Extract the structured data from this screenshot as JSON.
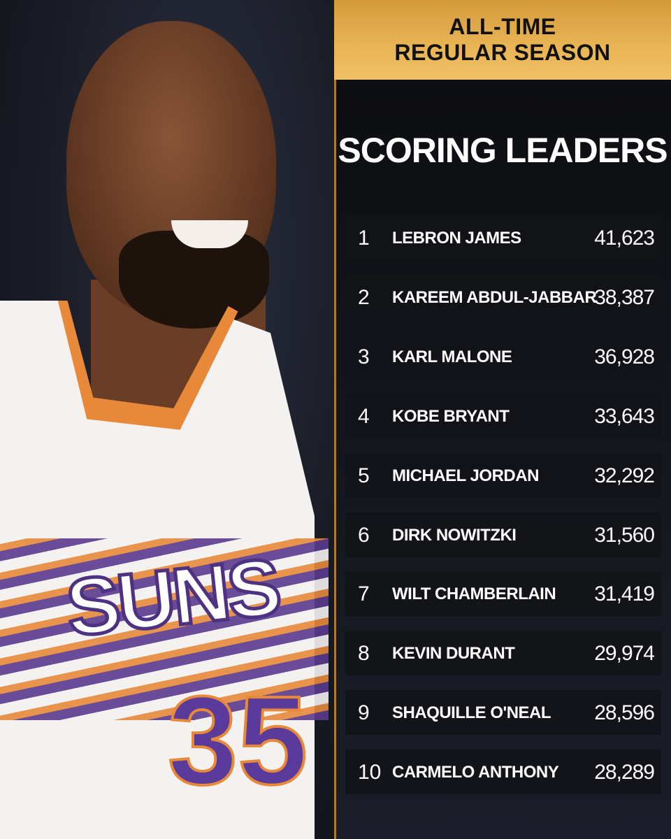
{
  "header": {
    "banner_line1": "ALL-TIME",
    "banner_line2": "REGULAR SEASON",
    "title": "SCORING LEADERS"
  },
  "photo": {
    "jersey_text": "SUNS",
    "jersey_number": "35"
  },
  "colors": {
    "banner_gold": "#e9b555",
    "panel_dark": "#0d0e11",
    "row_bg": "#121318",
    "jersey_purple": "#5a3a8e",
    "jersey_orange": "#e8893a"
  },
  "leaders": [
    {
      "rank": "1",
      "name": "LEBRON JAMES",
      "points": "41,623"
    },
    {
      "rank": "2",
      "name": "KAREEM ABDUL-JABBAR",
      "points": "38,387"
    },
    {
      "rank": "3",
      "name": "KARL MALONE",
      "points": "36,928"
    },
    {
      "rank": "4",
      "name": "KOBE BRYANT",
      "points": "33,643"
    },
    {
      "rank": "5",
      "name": "MICHAEL JORDAN",
      "points": "32,292"
    },
    {
      "rank": "6",
      "name": "DIRK NOWITZKI",
      "points": "31,560"
    },
    {
      "rank": "7",
      "name": "WILT CHAMBERLAIN",
      "points": "31,419"
    },
    {
      "rank": "8",
      "name": "KEVIN DURANT",
      "points": "29,974"
    },
    {
      "rank": "9",
      "name": "SHAQUILLE O'NEAL",
      "points": "28,596"
    },
    {
      "rank": "10",
      "name": "CARMELO ANTHONY",
      "points": "28,289"
    }
  ]
}
